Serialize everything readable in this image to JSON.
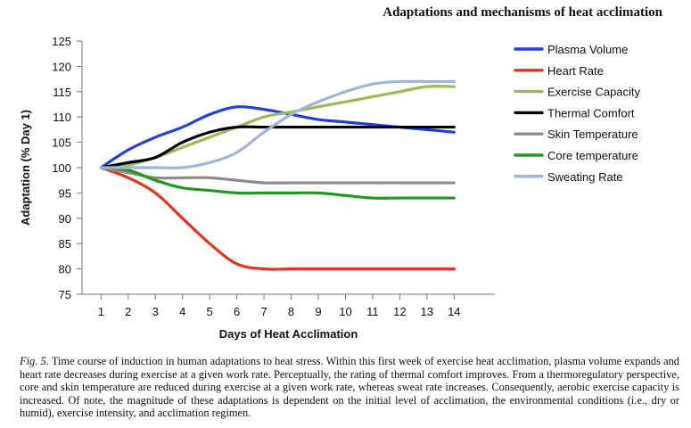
{
  "header": {
    "title": "Adaptations and mechanisms of heat acclimation"
  },
  "caption": {
    "label": "Fig. 5.",
    "text": "Time course of induction in human adaptations to heat stress. Within this first week of exercise heat acclimation, plasma volume expands and heart rate decreases during exercise at a given work rate. Perceptually, the rating of thermal comfort improves. From a thermoregulatory perspective, core and skin temperature are reduced during exercise at a given work rate, whereas sweat rate increases. Consequently, aerobic exercise capacity is increased. Of note, the magnitude of these adaptations is dependent on the initial level of acclimation, the environmental conditions (i.e., dry or humid), exercise intensity, and acclimation regimen."
  },
  "chart_data": {
    "type": "line",
    "title": "",
    "xlabel": "Days of Heat Acclimation",
    "ylabel": "Adaptation (% Day 1)",
    "x": [
      1,
      2,
      3,
      4,
      5,
      6,
      7,
      8,
      9,
      10,
      11,
      12,
      13,
      14
    ],
    "ylim": [
      75,
      125
    ],
    "yticks": [
      75,
      80,
      85,
      90,
      95,
      100,
      105,
      110,
      115,
      120,
      125
    ],
    "grid": false,
    "legend_position": "right",
    "series": [
      {
        "name": "Plasma Volume",
        "color": "#1f3fe0",
        "values": [
          100,
          103.5,
          106,
          108,
          110.5,
          112,
          111.5,
          110.5,
          109.5,
          109,
          108.5,
          108,
          107.5,
          107
        ]
      },
      {
        "name": "Heart Rate",
        "color": "#e8321e",
        "values": [
          100,
          98,
          95,
          90,
          85,
          81,
          80,
          80,
          80,
          80,
          80,
          80,
          80,
          80
        ]
      },
      {
        "name": "Exercise Capacity",
        "color": "#9bbb59",
        "values": [
          100,
          100.5,
          102,
          104,
          106,
          108,
          110,
          111,
          112,
          113,
          114,
          115,
          116,
          116
        ]
      },
      {
        "name": "Thermal Comfort",
        "color": "#000000",
        "values": [
          100,
          101,
          102,
          105,
          107,
          108,
          108,
          108,
          108,
          108,
          108,
          108,
          108,
          108
        ]
      },
      {
        "name": "Skin Temperature",
        "color": "#8c8c8c",
        "values": [
          100,
          99,
          98,
          98,
          98,
          97.5,
          97,
          97,
          97,
          97,
          97,
          97,
          97,
          97
        ]
      },
      {
        "name": "Core temperature",
        "color": "#1e9a1e",
        "values": [
          100,
          99.5,
          97.5,
          96,
          95.5,
          95,
          95,
          95,
          95,
          94.5,
          94,
          94,
          94,
          94
        ]
      },
      {
        "name": "Sweating Rate",
        "color": "#9fb5d9",
        "values": [
          100,
          100,
          100,
          100,
          101,
          103,
          107,
          110.5,
          113,
          115,
          116.5,
          117,
          117,
          117
        ]
      }
    ]
  }
}
